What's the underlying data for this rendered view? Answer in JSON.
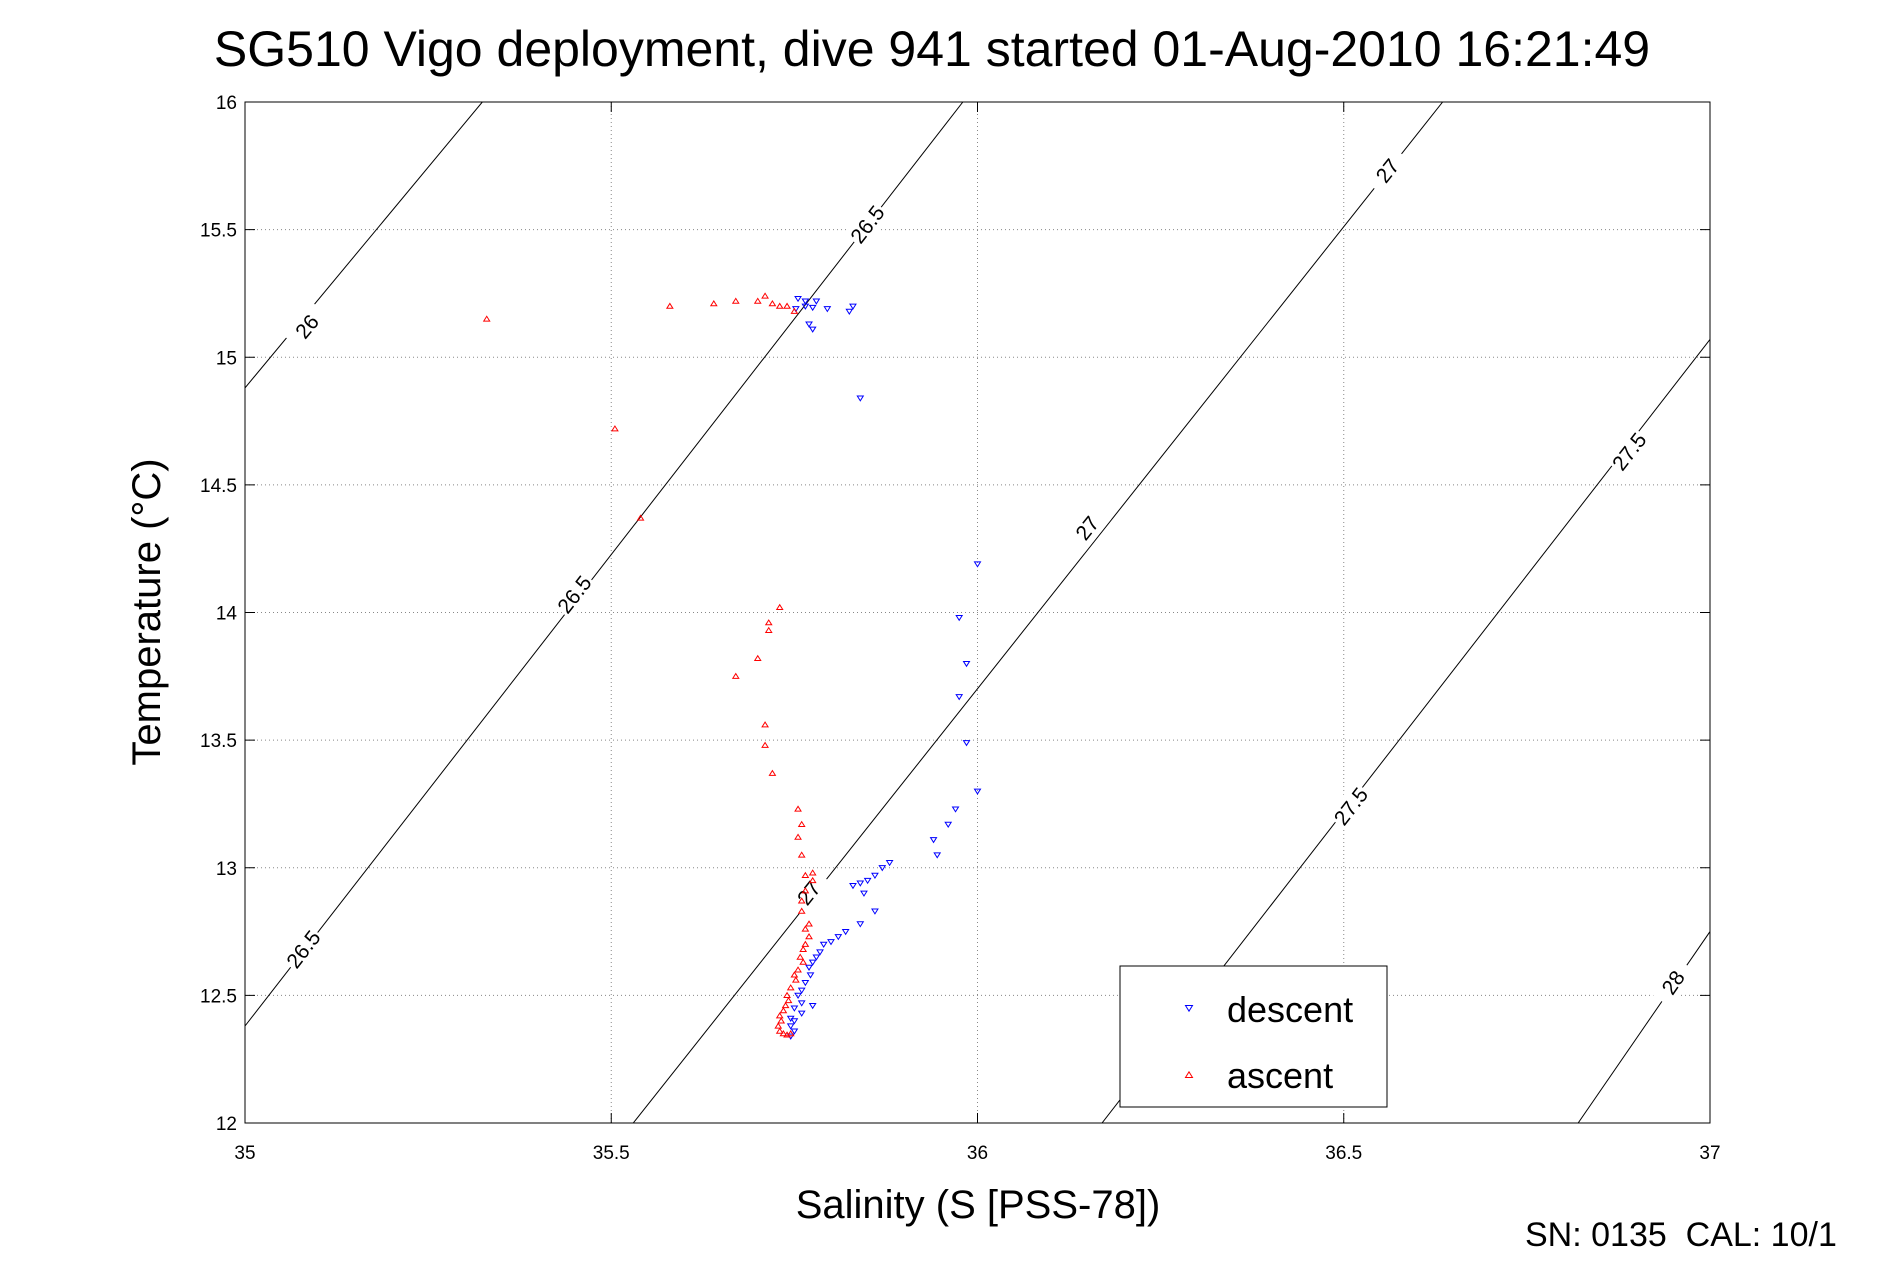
{
  "chart_data": {
    "type": "scatter",
    "title": "SG510 Vigo deployment, dive 941 started 01-Aug-2010 16:21:49",
    "xlabel": "Salinity (S [PSS-78])",
    "ylabel": "Temperature (°C)",
    "xlim": [
      35,
      37
    ],
    "ylim": [
      12,
      16
    ],
    "x_ticks": [
      "35",
      "35.5",
      "36",
      "36.5",
      "37"
    ],
    "y_ticks": [
      "12",
      "12.5",
      "13",
      "13.5",
      "14",
      "14.5",
      "15",
      "15.5",
      "16"
    ],
    "grid": true,
    "legend_position": "bottom-right",
    "footer": "SN: 0135  CAL: 10/1",
    "isopycnals": [
      {
        "sigma": 26.0,
        "points": [
          [
            35.0,
            14.88
          ],
          [
            35.324,
            16.0
          ]
        ],
        "labels": [
          {
            "text": "26",
            "x": 35.085,
            "y": 15.12
          }
        ]
      },
      {
        "sigma": 26.5,
        "points": [
          [
            35.0,
            12.38
          ],
          [
            35.98,
            16.0
          ]
        ],
        "labels": [
          {
            "text": "26.5",
            "x": 35.08,
            "y": 12.68
          },
          {
            "text": "26.5",
            "x": 35.45,
            "y": 14.07
          },
          {
            "text": "26.5",
            "x": 35.85,
            "y": 15.52
          }
        ]
      },
      {
        "sigma": 27.0,
        "points": [
          [
            35.53,
            12.0
          ],
          [
            36.635,
            16.0
          ]
        ],
        "labels": [
          {
            "text": "27",
            "x": 35.77,
            "y": 12.9
          },
          {
            "text": "27",
            "x": 36.15,
            "y": 14.33
          },
          {
            "text": "27",
            "x": 36.56,
            "y": 15.73
          }
        ]
      },
      {
        "sigma": 27.5,
        "points": [
          [
            36.17,
            12.0
          ],
          [
            37.0,
            15.07
          ]
        ],
        "labels": [
          {
            "text": "27.5",
            "x": 36.51,
            "y": 13.24
          },
          {
            "text": "27.5",
            "x": 36.89,
            "y": 14.63
          }
        ]
      },
      {
        "sigma": 28.0,
        "points": [
          [
            36.82,
            12.0
          ],
          [
            37.0,
            12.75
          ]
        ],
        "labels": [
          {
            "text": "28",
            "x": 36.95,
            "y": 12.55
          }
        ]
      }
    ],
    "series": [
      {
        "name": "descent",
        "color": "#0000ff",
        "marker": "triangle-down",
        "points": [
          [
            35.755,
            15.23
          ],
          [
            35.765,
            15.22
          ],
          [
            35.78,
            15.22
          ],
          [
            35.765,
            15.2
          ],
          [
            35.752,
            15.19
          ],
          [
            35.775,
            15.195
          ],
          [
            35.795,
            15.19
          ],
          [
            35.83,
            15.2
          ],
          [
            35.825,
            15.18
          ],
          [
            35.77,
            15.13
          ],
          [
            35.775,
            15.11
          ],
          [
            35.84,
            14.84
          ],
          [
            36.0,
            14.19
          ],
          [
            35.975,
            13.98
          ],
          [
            35.985,
            13.8
          ],
          [
            35.975,
            13.67
          ],
          [
            35.985,
            13.49
          ],
          [
            36.0,
            13.3
          ],
          [
            35.97,
            13.23
          ],
          [
            35.96,
            13.17
          ],
          [
            35.94,
            13.11
          ],
          [
            35.945,
            13.05
          ],
          [
            35.88,
            13.02
          ],
          [
            35.87,
            13.0
          ],
          [
            35.86,
            12.97
          ],
          [
            35.85,
            12.95
          ],
          [
            35.84,
            12.94
          ],
          [
            35.83,
            12.93
          ],
          [
            35.845,
            12.9
          ],
          [
            35.86,
            12.83
          ],
          [
            35.84,
            12.78
          ],
          [
            35.82,
            12.75
          ],
          [
            35.81,
            12.73
          ],
          [
            35.8,
            12.71
          ],
          [
            35.79,
            12.7
          ],
          [
            35.785,
            12.67
          ],
          [
            35.78,
            12.65
          ],
          [
            35.775,
            12.63
          ],
          [
            35.77,
            12.61
          ],
          [
            35.772,
            12.58
          ],
          [
            35.765,
            12.55
          ],
          [
            35.76,
            12.52
          ],
          [
            35.755,
            12.5
          ],
          [
            35.76,
            12.47
          ],
          [
            35.775,
            12.46
          ],
          [
            35.75,
            12.45
          ],
          [
            35.76,
            12.43
          ],
          [
            35.745,
            12.41
          ],
          [
            35.75,
            12.4
          ],
          [
            35.745,
            12.38
          ],
          [
            35.75,
            12.36
          ],
          [
            35.745,
            12.34
          ]
        ]
      },
      {
        "name": "ascent",
        "color": "#ff0000",
        "marker": "triangle-up",
        "points": [
          [
            35.33,
            15.15
          ],
          [
            35.58,
            15.2
          ],
          [
            35.64,
            15.21
          ],
          [
            35.67,
            15.22
          ],
          [
            35.7,
            15.22
          ],
          [
            35.71,
            15.24
          ],
          [
            35.72,
            15.21
          ],
          [
            35.73,
            15.2
          ],
          [
            35.74,
            15.2
          ],
          [
            35.75,
            15.18
          ],
          [
            35.505,
            14.72
          ],
          [
            35.54,
            14.37
          ],
          [
            35.73,
            14.02
          ],
          [
            35.715,
            13.96
          ],
          [
            35.715,
            13.93
          ],
          [
            35.7,
            13.82
          ],
          [
            35.67,
            13.75
          ],
          [
            35.71,
            13.56
          ],
          [
            35.71,
            13.48
          ],
          [
            35.72,
            13.37
          ],
          [
            35.755,
            13.23
          ],
          [
            35.76,
            13.17
          ],
          [
            35.755,
            13.12
          ],
          [
            35.76,
            13.05
          ],
          [
            35.765,
            12.97
          ],
          [
            35.775,
            12.98
          ],
          [
            35.775,
            12.95
          ],
          [
            35.765,
            12.91
          ],
          [
            35.76,
            12.87
          ],
          [
            35.76,
            12.83
          ],
          [
            35.77,
            12.78
          ],
          [
            35.765,
            12.76
          ],
          [
            35.77,
            12.73
          ],
          [
            35.765,
            12.7
          ],
          [
            35.762,
            12.68
          ],
          [
            35.758,
            12.65
          ],
          [
            35.762,
            12.63
          ],
          [
            35.755,
            12.6
          ],
          [
            35.75,
            12.58
          ],
          [
            35.752,
            12.56
          ],
          [
            35.745,
            12.53
          ],
          [
            35.74,
            12.5
          ],
          [
            35.742,
            12.48
          ],
          [
            35.738,
            12.46
          ],
          [
            35.735,
            12.44
          ],
          [
            35.73,
            12.42
          ],
          [
            35.732,
            12.4
          ],
          [
            35.728,
            12.38
          ],
          [
            35.73,
            12.36
          ],
          [
            35.735,
            12.35
          ],
          [
            35.74,
            12.345
          ],
          [
            35.745,
            12.35
          ]
        ]
      }
    ]
  }
}
